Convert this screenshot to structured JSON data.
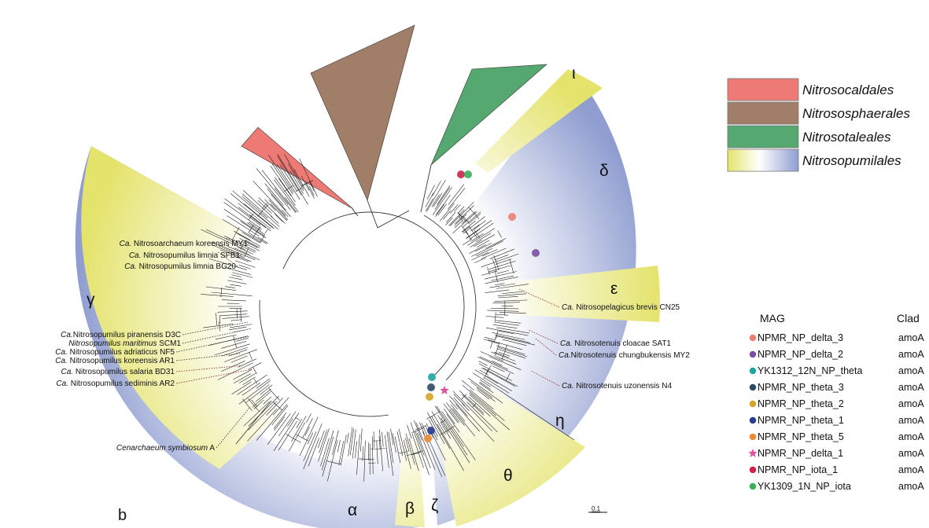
{
  "panel_label": "b",
  "scale_bar": "0.1",
  "order_legend": [
    {
      "name": "Nitrosocaldales",
      "color": "#ee7a76"
    },
    {
      "name": "Nitrososphaerales",
      "color": "#a07e68"
    },
    {
      "name": "Nitrosotaleales",
      "color": "#55a86f"
    },
    {
      "name": "Nitrosopumilales",
      "gradient": [
        "#e4e36c",
        "#ffffff",
        "#8f9dd0"
      ]
    }
  ],
  "clades": [
    "α",
    "β",
    "γ",
    "δ",
    "ε",
    "ζ",
    "η",
    "θ",
    "ι"
  ],
  "strains_left": [
    {
      "prefix": "Ca.",
      "name": " Nitrosoarchaeum koreensis MY1"
    },
    {
      "prefix": "Ca.",
      "name": " Nitrosopumilus limnia SFB1"
    },
    {
      "prefix": "Ca.",
      "name": " Nitrosopumilus limnia BG20"
    },
    {
      "prefix": "Ca.",
      "name": "Nitrosopumilus piranensis D3C"
    },
    {
      "prefix": "Nitrosopumilus maritimus",
      "name": " SCM1"
    },
    {
      "prefix": "Ca.",
      "name": " Nitrosopumilus adriaticus NF5"
    },
    {
      "prefix": "Ca.",
      "name": " Nitrosopumilus koreensis AR1"
    },
    {
      "prefix": "Ca.",
      "name": " Nitrosopumilus salaria BD31"
    },
    {
      "prefix": "Ca.",
      "name": " Nitrosopumilus sediminis AR2"
    },
    {
      "prefix": "Cenarchaeum symbiosum",
      "name": " A"
    }
  ],
  "strains_right": [
    {
      "prefix": "Ca.",
      "name": " Nitrosopelagicus brevis CN25"
    },
    {
      "prefix": "Ca.",
      "name": " Nitrosotenuis cloacae SAT1"
    },
    {
      "prefix": "Ca.",
      "name": "Nitrosotenuis chungbukensis MY2"
    },
    {
      "prefix": "Ca.",
      "name": " Nitrosotenuis uzonensis N4"
    }
  ],
  "mag_table": {
    "header_mag": "MAG",
    "header_clade": "Clad",
    "rows": [
      {
        "mag": "NPMR_NP_delta_3",
        "clade": "amoA",
        "color": "#ef7d72",
        "marker": "circle"
      },
      {
        "mag": "NPMR_NP_delta_2",
        "clade": "amoA",
        "color": "#7b4fa3",
        "marker": "circle"
      },
      {
        "mag": "YK1312_12N_NP_theta",
        "clade": "amoA",
        "color": "#1fa5a0",
        "marker": "circle"
      },
      {
        "mag": "NPMR_NP_theta_3",
        "clade": "amoA",
        "color": "#2f4b66",
        "marker": "circle"
      },
      {
        "mag": "NPMR_NP_theta_2",
        "clade": "amoA",
        "color": "#d4a426",
        "marker": "circle"
      },
      {
        "mag": "NPMR_NP_theta_1",
        "clade": "amoA",
        "color": "#2a3b91",
        "marker": "circle"
      },
      {
        "mag": "NPMR_NP_theta_5",
        "clade": "amoA",
        "color": "#ef8a33",
        "marker": "circle"
      },
      {
        "mag": "NPMR_NP_delta_1",
        "clade": "amoA",
        "color": "#e0509e",
        "marker": "star"
      },
      {
        "mag": "NPMR_NP_iota_1",
        "clade": "amoA",
        "color": "#d1204a",
        "marker": "circle"
      },
      {
        "mag": "YK1309_1N_NP_iota",
        "clade": "amoA",
        "color": "#36b05a",
        "marker": "circle"
      }
    ]
  }
}
